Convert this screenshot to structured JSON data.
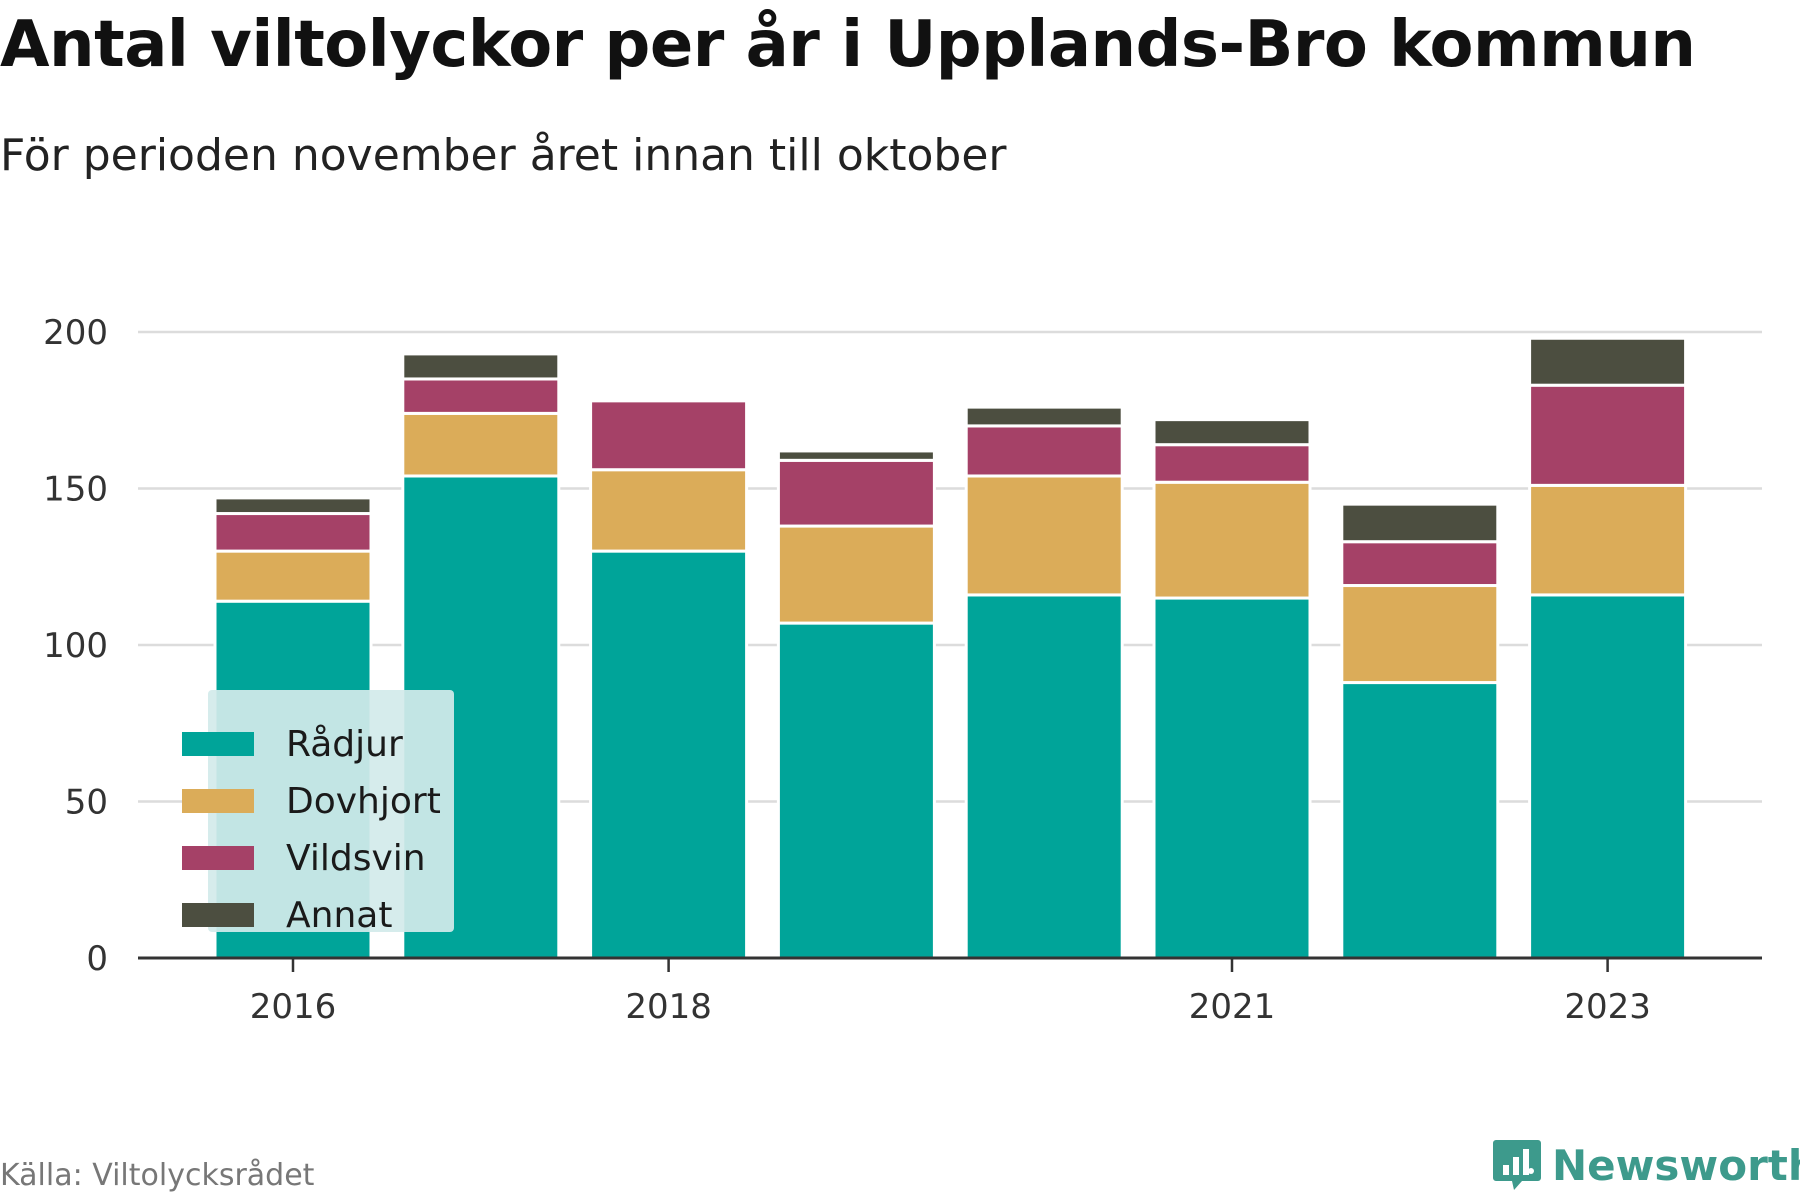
{
  "title": "Antal viltolyckor per år i Upplands-Bro kommun",
  "subtitle": "För perioden november året innan till oktober",
  "source": "Källa: Viltolycksrådet",
  "brand": {
    "name": "Newsworthy",
    "icon": "newsworthy-logo-icon",
    "color": "#3d9a8c"
  },
  "chart_data": {
    "type": "bar",
    "stacked": true,
    "title": "Antal viltolyckor per år i Upplands-Bro kommun",
    "subtitle": "För perioden november året innan till oktober",
    "categories": [
      "2016",
      "2017",
      "2018",
      "2019",
      "2020",
      "2021",
      "2022",
      "2023"
    ],
    "x_tick_labels": [
      "2016",
      "2018",
      "2021",
      "2023"
    ],
    "series": [
      {
        "name": "Rådjur",
        "color": "#00a499",
        "values": [
          114,
          154,
          130,
          107,
          116,
          115,
          88,
          116
        ]
      },
      {
        "name": "Dovhjort",
        "color": "#dbac59",
        "values": [
          16,
          20,
          26,
          31,
          38,
          37,
          31,
          35
        ]
      },
      {
        "name": "Vildsvin",
        "color": "#a54167",
        "values": [
          12,
          11,
          22,
          21,
          16,
          12,
          14,
          32
        ]
      },
      {
        "name": "Annat",
        "color": "#4c4e40",
        "values": [
          5,
          8,
          0,
          3,
          6,
          8,
          12,
          15
        ]
      }
    ],
    "ylim": [
      0,
      200
    ],
    "yticks": [
      0,
      50,
      100,
      150,
      200
    ],
    "grid": true,
    "legend": "bottom-left",
    "xlabel": "",
    "ylabel": ""
  }
}
